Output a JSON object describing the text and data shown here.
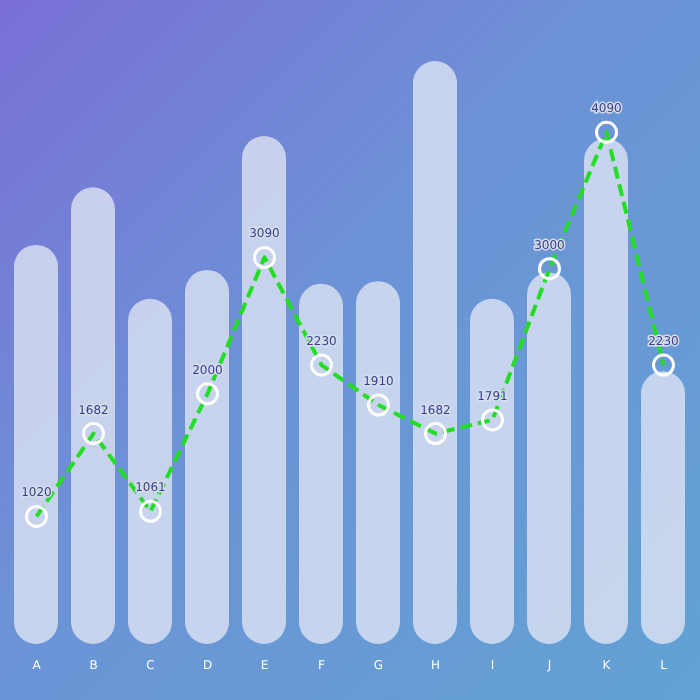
{
  "chart_data": {
    "type": "bar",
    "categories": [
      "A",
      "B",
      "C",
      "D",
      "E",
      "F",
      "G",
      "H",
      "I",
      "J",
      "K",
      "L"
    ],
    "ylim": [
      0,
      4700
    ],
    "tick_labels": "x",
    "series": [
      {
        "color": "#dde3f2",
        "values": [
          3190,
          3650,
          2760,
          2990,
          4060,
          2880,
          2900,
          4660,
          2760,
          2970,
          4040,
          2180
        ]
      },
      {
        "type": "line",
        "color": "#22dd22",
        "line_style": "dashed",
        "marker": "circle",
        "values": [
          1020,
          1682,
          1061,
          2000,
          3090,
          2230,
          1910,
          1682,
          1791,
          3000,
          4090,
          2230
        ],
        "value_labels": [
          "1020",
          "1682",
          "1061",
          "2000",
          "3090",
          "2230",
          "1910",
          "1682",
          "1791",
          "3000",
          "4090",
          "2230"
        ]
      }
    ]
  }
}
